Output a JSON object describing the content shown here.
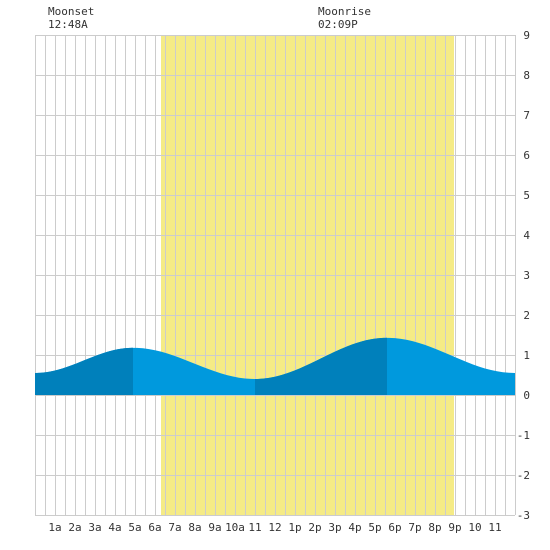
{
  "moon_events": [
    {
      "label": "Moonset",
      "time": "12:48A"
    },
    {
      "label": "Moonrise",
      "time": "02:09P"
    }
  ],
  "colors": {
    "daylight": "#f5eb86",
    "tide_light": "#0099dd",
    "tide_dark": "#0080bb",
    "grid": "#cccccc",
    "background": "#ffffff"
  },
  "chart_data": {
    "type": "area",
    "x_unit": "hour of day",
    "xlim": [
      -1,
      23
    ],
    "ylim": [
      -3,
      9
    ],
    "grid": true,
    "x_ticks": [
      {
        "x": 0,
        "label": "1a"
      },
      {
        "x": 1,
        "label": "2a"
      },
      {
        "x": 2,
        "label": "3a"
      },
      {
        "x": 3,
        "label": "4a"
      },
      {
        "x": 4,
        "label": "5a"
      },
      {
        "x": 5,
        "label": "6a"
      },
      {
        "x": 6,
        "label": "7a"
      },
      {
        "x": 7,
        "label": "8a"
      },
      {
        "x": 8,
        "label": "9a"
      },
      {
        "x": 9,
        "label": "10a"
      },
      {
        "x": 10,
        "label": "11"
      },
      {
        "x": 11,
        "label": "12"
      },
      {
        "x": 12,
        "label": "1p"
      },
      {
        "x": 13,
        "label": "2p"
      },
      {
        "x": 14,
        "label": "3p"
      },
      {
        "x": 15,
        "label": "4p"
      },
      {
        "x": 16,
        "label": "5p"
      },
      {
        "x": 17,
        "label": "6p"
      },
      {
        "x": 18,
        "label": "7p"
      },
      {
        "x": 19,
        "label": "8p"
      },
      {
        "x": 20,
        "label": "9p"
      },
      {
        "x": 21,
        "label": "10"
      },
      {
        "x": 22,
        "label": "11"
      }
    ],
    "y_ticks": [
      -3,
      -2,
      -1,
      0,
      1,
      2,
      3,
      4,
      5,
      6,
      7,
      8,
      9
    ],
    "daylight": [
      5.3,
      19.95
    ],
    "tide_extremes": [
      {
        "x": -1.0,
        "y": 0.55
      },
      {
        "x": 3.9,
        "y": 1.18
      },
      {
        "x": 10.0,
        "y": 0.4
      },
      {
        "x": 16.6,
        "y": 1.43
      },
      {
        "x": 23.0,
        "y": 0.55
      }
    ],
    "shade_bands": [
      [
        -1,
        3.9
      ],
      [
        10.0,
        16.6
      ]
    ]
  }
}
